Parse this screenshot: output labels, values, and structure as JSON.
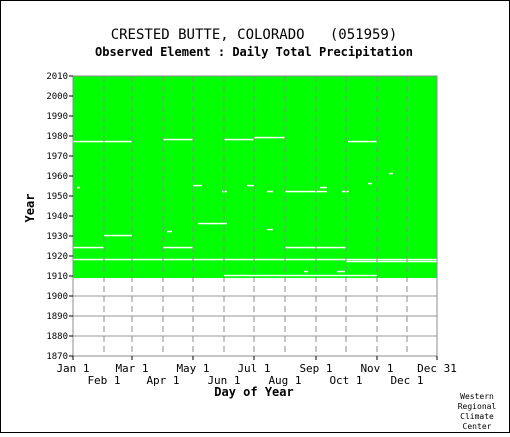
{
  "chart_data": {
    "type": "heatmap",
    "title": "CRESTED BUTTE, COLORADO   (051959)",
    "subtitle": "Observed Element : Daily Total Precipitation",
    "xlabel": "Day of Year",
    "ylabel": "Year",
    "credit": [
      "Western",
      "Regional",
      "Climate",
      "Center"
    ],
    "ylim": [
      1870,
      2010
    ],
    "xlim": [
      1,
      365
    ],
    "y_ticks": [
      1870,
      1880,
      1890,
      1900,
      1910,
      1920,
      1930,
      1940,
      1950,
      1960,
      1970,
      1980,
      1990,
      2000,
      2010
    ],
    "x_ticks_upper": [
      {
        "label": "Jan 1",
        "day": 1
      },
      {
        "label": "Mar 1",
        "day": 60
      },
      {
        "label": "May 1",
        "day": 121
      },
      {
        "label": "Jul 1",
        "day": 182
      },
      {
        "label": "Sep 1",
        "day": 244
      },
      {
        "label": "Nov 1",
        "day": 305
      },
      {
        "label": "Dec 31",
        "day": 365
      }
    ],
    "x_ticks_lower": [
      {
        "label": "Feb 1",
        "day": 32
      },
      {
        "label": "Apr 1",
        "day": 91
      },
      {
        "label": "Jun 1",
        "day": 152
      },
      {
        "label": "Aug 1",
        "day": 213
      },
      {
        "label": "Oct 1",
        "day": 274
      },
      {
        "label": "Dec 1",
        "day": 335
      }
    ],
    "data_color": "#00ff00",
    "missing_color": "#ffffff",
    "data_coverage": {
      "year_start": 1909,
      "year_end": 2010,
      "day_start": 1,
      "day_end": 365
    },
    "missing_segments": [
      {
        "year": 1977,
        "day_start": 1,
        "day_end": 60
      },
      {
        "year": 1977,
        "day_start": 276,
        "day_end": 305
      },
      {
        "year": 1978,
        "day_start": 91,
        "day_end": 121
      },
      {
        "year": 1978,
        "day_start": 152,
        "day_end": 182
      },
      {
        "year": 1979,
        "day_start": 182,
        "day_end": 213
      },
      {
        "year": 1955,
        "day_start": 121,
        "day_end": 130
      },
      {
        "year": 1955,
        "day_start": 175,
        "day_end": 182
      },
      {
        "year": 1954,
        "day_start": 5,
        "day_end": 8
      },
      {
        "year": 1952,
        "day_start": 195,
        "day_end": 201
      },
      {
        "year": 1952,
        "day_start": 213,
        "day_end": 255
      },
      {
        "year": 1954,
        "day_start": 248,
        "day_end": 255
      },
      {
        "year": 1952,
        "day_start": 150,
        "day_end": 155
      },
      {
        "year": 1952,
        "day_start": 270,
        "day_end": 277
      },
      {
        "year": 1956,
        "day_start": 296,
        "day_end": 300
      },
      {
        "year": 1961,
        "day_start": 317,
        "day_end": 321
      },
      {
        "year": 1936,
        "day_start": 126,
        "day_end": 155
      },
      {
        "year": 1933,
        "day_start": 195,
        "day_end": 201
      },
      {
        "year": 1932,
        "day_start": 95,
        "day_end": 100
      },
      {
        "year": 1930,
        "day_start": 32,
        "day_end": 60
      },
      {
        "year": 1924,
        "day_start": 1,
        "day_end": 32
      },
      {
        "year": 1924,
        "day_start": 91,
        "day_end": 121
      },
      {
        "year": 1924,
        "day_start": 213,
        "day_end": 274
      },
      {
        "year": 1918,
        "day_start": 1,
        "day_end": 365
      },
      {
        "year": 1917,
        "day_start": 274,
        "day_end": 365
      },
      {
        "year": 1912,
        "day_start": 232,
        "day_end": 236
      },
      {
        "year": 1912,
        "day_start": 265,
        "day_end": 273
      },
      {
        "year": 1910,
        "day_start": 152,
        "day_end": 305
      }
    ],
    "grid": true
  }
}
